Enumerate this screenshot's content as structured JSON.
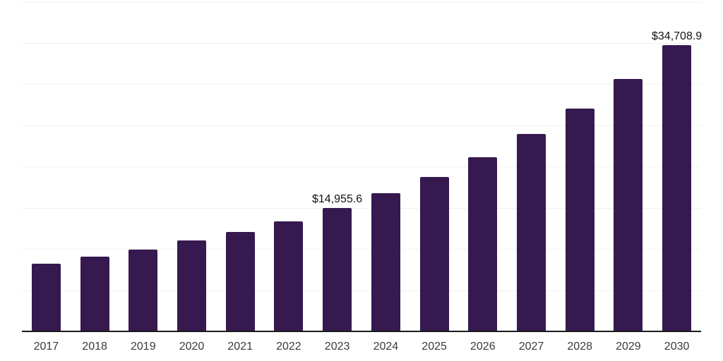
{
  "chart_data": {
    "type": "bar",
    "title": "",
    "xlabel": "",
    "ylabel": "",
    "categories": [
      "2017",
      "2018",
      "2019",
      "2020",
      "2021",
      "2022",
      "2023",
      "2024",
      "2025",
      "2026",
      "2027",
      "2028",
      "2029",
      "2030"
    ],
    "values": [
      8260,
      9110,
      9970,
      11020,
      12100,
      13380,
      14955.6,
      16750,
      18700,
      21150,
      23950,
      27000,
      30650,
      34708.9
    ],
    "point_labels": [
      "",
      "",
      "",
      "",
      "",
      "",
      "$14,955.6",
      "",
      "",
      "",
      "",
      "",
      "",
      "$34,708.9"
    ],
    "ylim": [
      0,
      40000
    ],
    "gridline_step": 5000,
    "grid": "horizontal",
    "y_tick_labels_visible": false,
    "legend_position": "none",
    "colors": {
      "background": "#ffffff",
      "bar_fill": "#36194f",
      "gridline": "#f0f0f0",
      "axis_line": "#1a1a1a",
      "x_tick_label": "#3a3a3a",
      "data_label": "#111111"
    }
  }
}
